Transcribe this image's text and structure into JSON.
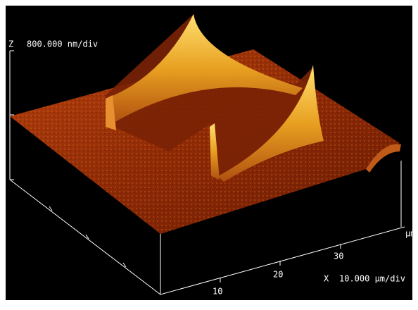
{
  "z_axis": {
    "label": "Z",
    "scale": "800.000 nm/div"
  },
  "x_axis": {
    "label": "X",
    "scale": "10.000 µm/div",
    "unit": "µm",
    "ticks": [
      "10",
      "20",
      "30"
    ]
  }
}
